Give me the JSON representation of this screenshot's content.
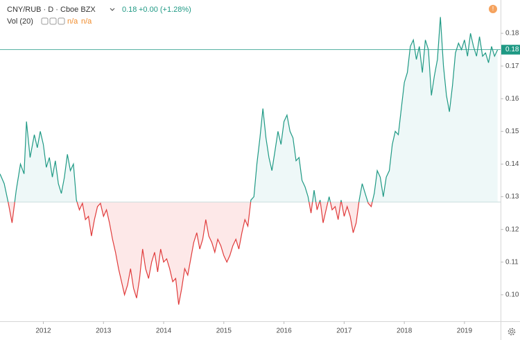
{
  "chart_data": {
    "type": "baseline",
    "header": {
      "symbol": "CNY/RUB · D · Cboe BZX",
      "last": "0.18",
      "change": "+0.00 (+1.28%)",
      "indicator": "Vol (20)",
      "indicator_values": [
        "n/a",
        "n/a"
      ]
    },
    "x": [
      2011.28,
      2011.35,
      2011.42,
      2011.48,
      2011.55,
      2011.62,
      2011.68,
      2011.72,
      2011.78,
      2011.85,
      2011.9,
      2011.95,
      2012.0,
      2012.05,
      2012.1,
      2012.15,
      2012.2,
      2012.25,
      2012.3,
      2012.35,
      2012.4,
      2012.45,
      2012.5,
      2012.55,
      2012.6,
      2012.65,
      2012.7,
      2012.75,
      2012.8,
      2012.85,
      2012.9,
      2012.95,
      2013.0,
      2013.05,
      2013.1,
      2013.15,
      2013.2,
      2013.25,
      2013.3,
      2013.35,
      2013.4,
      2013.45,
      2013.5,
      2013.55,
      2013.6,
      2013.65,
      2013.7,
      2013.75,
      2013.8,
      2013.85,
      2013.9,
      2013.95,
      2014.0,
      2014.05,
      2014.1,
      2014.15,
      2014.2,
      2014.25,
      2014.3,
      2014.35,
      2014.4,
      2014.45,
      2014.5,
      2014.55,
      2014.6,
      2014.65,
      2014.7,
      2014.75,
      2014.8,
      2014.85,
      2014.9,
      2014.95,
      2015.0,
      2015.05,
      2015.1,
      2015.15,
      2015.2,
      2015.25,
      2015.3,
      2015.35,
      2015.4,
      2015.45,
      2015.5,
      2015.55,
      2015.6,
      2015.65,
      2015.7,
      2015.75,
      2015.8,
      2015.85,
      2015.9,
      2015.95,
      2016.0,
      2016.05,
      2016.1,
      2016.15,
      2016.2,
      2016.25,
      2016.3,
      2016.35,
      2016.4,
      2016.45,
      2016.5,
      2016.55,
      2016.6,
      2016.65,
      2016.7,
      2016.75,
      2016.8,
      2016.85,
      2016.9,
      2016.95,
      2017.0,
      2017.05,
      2017.1,
      2017.15,
      2017.2,
      2017.25,
      2017.3,
      2017.35,
      2017.4,
      2017.45,
      2017.5,
      2017.55,
      2017.6,
      2017.65,
      2017.7,
      2017.75,
      2017.8,
      2017.85,
      2017.9,
      2017.95,
      2018.0,
      2018.05,
      2018.1,
      2018.15,
      2018.2,
      2018.25,
      2018.3,
      2018.35,
      2018.4,
      2018.45,
      2018.5,
      2018.55,
      2018.6,
      2018.65,
      2018.7,
      2018.75,
      2018.8,
      2018.85,
      2018.9,
      2018.95,
      2019.0,
      2019.05,
      2019.1,
      2019.15,
      2019.2,
      2019.25,
      2019.3,
      2019.35,
      2019.4,
      2019.45,
      2019.5,
      2019.55
    ],
    "values": [
      0.137,
      0.134,
      0.128,
      0.122,
      0.132,
      0.14,
      0.137,
      0.153,
      0.142,
      0.149,
      0.145,
      0.15,
      0.146,
      0.139,
      0.142,
      0.136,
      0.141,
      0.134,
      0.131,
      0.136,
      0.143,
      0.138,
      0.14,
      0.129,
      0.126,
      0.128,
      0.123,
      0.124,
      0.118,
      0.123,
      0.127,
      0.128,
      0.124,
      0.126,
      0.122,
      0.117,
      0.113,
      0.108,
      0.104,
      0.1,
      0.103,
      0.108,
      0.102,
      0.099,
      0.105,
      0.114,
      0.108,
      0.105,
      0.11,
      0.113,
      0.107,
      0.114,
      0.11,
      0.111,
      0.108,
      0.104,
      0.105,
      0.097,
      0.102,
      0.108,
      0.106,
      0.111,
      0.116,
      0.119,
      0.114,
      0.117,
      0.123,
      0.118,
      0.116,
      0.113,
      0.117,
      0.115,
      0.112,
      0.11,
      0.112,
      0.115,
      0.117,
      0.114,
      0.119,
      0.123,
      0.121,
      0.129,
      0.13,
      0.14,
      0.148,
      0.157,
      0.148,
      0.142,
      0.138,
      0.144,
      0.15,
      0.146,
      0.153,
      0.155,
      0.15,
      0.148,
      0.141,
      0.142,
      0.135,
      0.133,
      0.13,
      0.125,
      0.132,
      0.126,
      0.129,
      0.122,
      0.126,
      0.13,
      0.126,
      0.127,
      0.123,
      0.129,
      0.124,
      0.127,
      0.124,
      0.119,
      0.122,
      0.129,
      0.134,
      0.131,
      0.128,
      0.127,
      0.131,
      0.138,
      0.136,
      0.13,
      0.136,
      0.138,
      0.146,
      0.15,
      0.149,
      0.157,
      0.165,
      0.168,
      0.176,
      0.178,
      0.172,
      0.176,
      0.168,
      0.178,
      0.175,
      0.161,
      0.167,
      0.172,
      0.185,
      0.17,
      0.161,
      0.156,
      0.164,
      0.174,
      0.177,
      0.175,
      0.178,
      0.173,
      0.18,
      0.176,
      0.173,
      0.179,
      0.173,
      0.174,
      0.171,
      0.176,
      0.173,
      0.175
    ],
    "baseline": 0.1284,
    "color_above": "#1e9984",
    "color_below": "#e03a3a",
    "fill_above": "#eef8f8",
    "fill_below": "#fde8e8",
    "price_line": {
      "value": 0.175,
      "label": "0.18"
    },
    "xlim": [
      2011.28,
      2019.6
    ],
    "xticks": [
      2012,
      2013,
      2014,
      2015,
      2016,
      2017,
      2018,
      2019
    ],
    "ylim": [
      0.0919,
      0.1902
    ],
    "yticks": [
      {
        "value": 0.1,
        "label": "0.10"
      },
      0.11,
      0.12,
      0.13,
      0.14,
      0.15,
      0.16,
      0.17,
      0.18
    ]
  }
}
